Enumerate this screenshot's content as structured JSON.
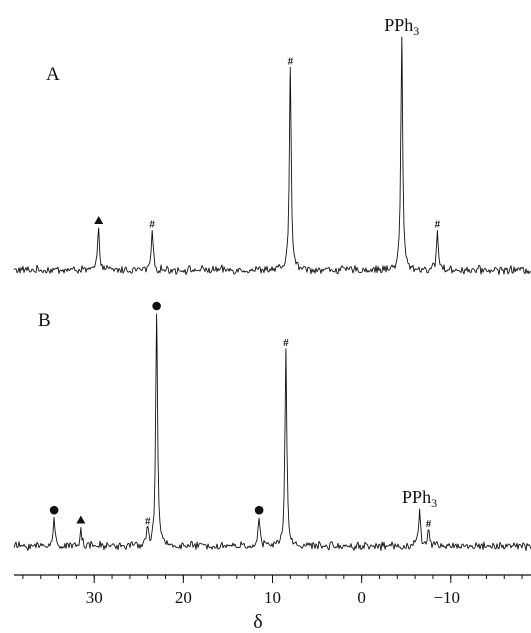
{
  "chart_data": {
    "type": "line",
    "subtype": "nmr-spectrum",
    "xlabel": "δ",
    "xlim": [
      39,
      -19
    ],
    "x_reversed": true,
    "x_ticks": [
      30,
      20,
      10,
      0,
      -10
    ],
    "x_tick_labels": [
      "30",
      "20",
      "10",
      "0",
      "−10"
    ],
    "grid": false,
    "panels": [
      {
        "label": "A",
        "peaks": [
          {
            "delta": 29.5,
            "height": 0.18,
            "marker": "triangle"
          },
          {
            "delta": 23.5,
            "height": 0.17,
            "marker": "hash"
          },
          {
            "delta": 8.0,
            "height": 0.87,
            "marker": "hash"
          },
          {
            "delta": -4.5,
            "height": 1.0,
            "marker": "text",
            "text": "PPh",
            "sub": "3"
          },
          {
            "delta": -8.5,
            "height": 0.17,
            "marker": "hash"
          }
        ]
      },
      {
        "label": "B",
        "peaks": [
          {
            "delta": 34.5,
            "height": 0.12,
            "marker": "circle"
          },
          {
            "delta": 31.5,
            "height": 0.08,
            "marker": "triangle"
          },
          {
            "delta": 24.0,
            "height": 0.08,
            "marker": "hash"
          },
          {
            "delta": 23.0,
            "height": 1.0,
            "marker": "circle"
          },
          {
            "delta": 11.5,
            "height": 0.12,
            "marker": "circle"
          },
          {
            "delta": 8.5,
            "height": 0.85,
            "marker": "hash"
          },
          {
            "delta": -6.5,
            "height": 0.16,
            "marker": "text",
            "text": "PPh",
            "sub": "3"
          },
          {
            "delta": -7.5,
            "height": 0.07,
            "marker": "hash"
          }
        ]
      }
    ]
  }
}
